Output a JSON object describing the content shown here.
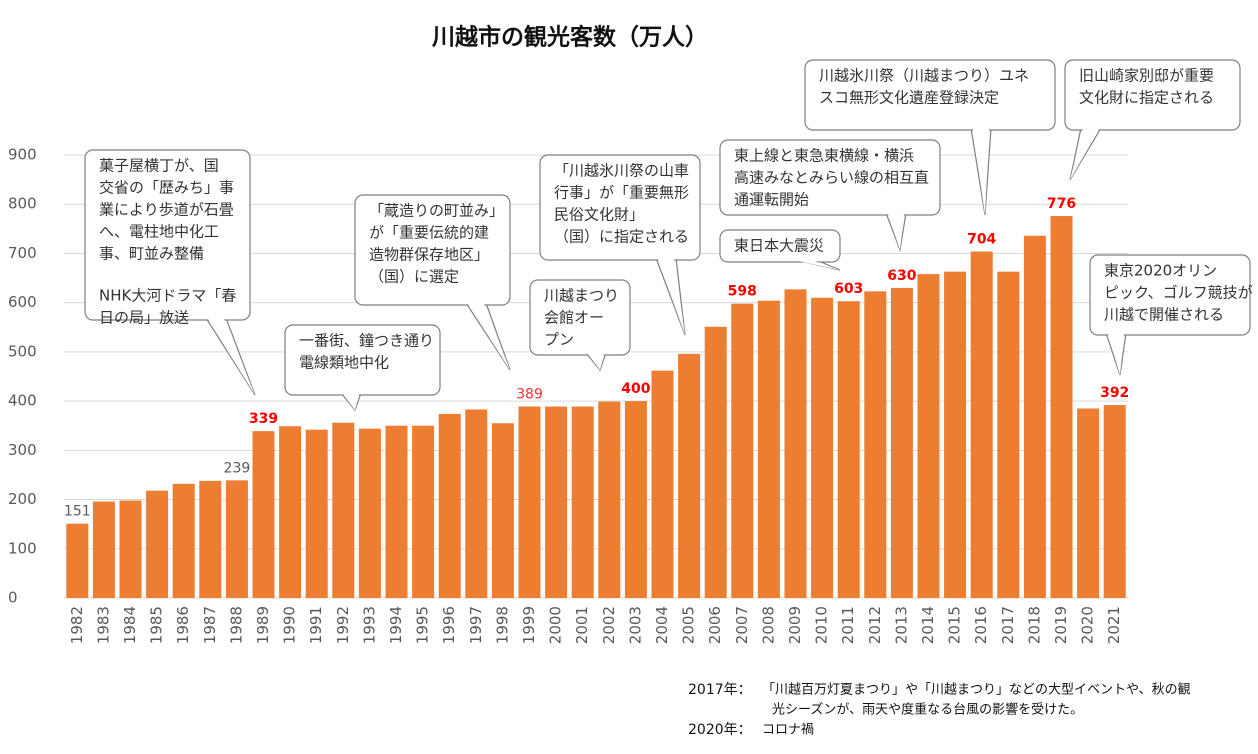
{
  "chart_data": {
    "type": "bar",
    "title": "川越市の観光客数（万人）",
    "categories": [
      "1982",
      "1983",
      "1984",
      "1985",
      "1986",
      "1987",
      "1988",
      "1989",
      "1990",
      "1991",
      "1992",
      "1993",
      "1994",
      "1995",
      "1996",
      "1997",
      "1998",
      "1999",
      "2000",
      "2001",
      "2002",
      "2003",
      "2004",
      "2005",
      "2006",
      "2007",
      "2008",
      "2009",
      "2010",
      "2011",
      "2012",
      "2013",
      "2014",
      "2015",
      "2016",
      "2017",
      "2018",
      "2019",
      "2020",
      "2021"
    ],
    "values": [
      151,
      196,
      198,
      218,
      232,
      238,
      239,
      339,
      349,
      342,
      356,
      344,
      350,
      350,
      374,
      383,
      355,
      389,
      389,
      389,
      399,
      400,
      462,
      496,
      551,
      598,
      604,
      627,
      610,
      603,
      623,
      630,
      658,
      663,
      704,
      663,
      736,
      776,
      385,
      392
    ],
    "value_labels": [
      "151",
      null,
      null,
      null,
      null,
      null,
      "239",
      "339",
      null,
      null,
      null,
      null,
      null,
      null,
      null,
      null,
      null,
      "389",
      null,
      null,
      null,
      "400",
      null,
      null,
      null,
      "598",
      null,
      null,
      null,
      "603",
      null,
      "630",
      null,
      null,
      "704",
      null,
      null,
      "776",
      null,
      "392"
    ],
    "value_label_colors": [
      "#595959",
      null,
      null,
      null,
      null,
      null,
      "#595959",
      "#ff0000",
      null,
      null,
      null,
      null,
      null,
      null,
      null,
      null,
      null,
      "#ff3030",
      null,
      null,
      null,
      "#ff0000",
      null,
      null,
      null,
      "#ff0000",
      null,
      null,
      null,
      "#ff0000",
      null,
      "#ff0000",
      null,
      null,
      "#ff0000",
      null,
      null,
      "#ff0000",
      null,
      "#ff0000"
    ],
    "color": "#ed7d31",
    "ylim": [
      0,
      900
    ],
    "yticks": [
      0,
      100,
      200,
      300,
      400,
      500,
      600,
      700,
      800,
      900
    ],
    "grid": true,
    "annotations": [
      {
        "lines": [
          "菓子屋横丁が、国",
          "交省の「歴みち」事",
          "業により歩道が石畳",
          "へ、電柱地中化工",
          "事、町並み整備",
          "NHK大河ドラマ「春",
          "日の局」放送"
        ]
      },
      {
        "lines": [
          "一番街、鐘つき通り",
          "電線類地中化"
        ]
      },
      {
        "lines": [
          "「蔵造りの町並み」",
          "が「重要伝統的建",
          "造物群保存地区」",
          "（国）に選定"
        ]
      },
      {
        "lines": [
          "川越まつり",
          "会館オー",
          "プン"
        ]
      },
      {
        "lines": [
          "「川越氷川祭の山車",
          "行事」が「重要無形",
          "民俗文化財」",
          "（国）に指定される"
        ]
      },
      {
        "lines": [
          "東日本大震災"
        ]
      },
      {
        "lines": [
          "東上線と東急東横線・横浜",
          "高速みなとみらい線の相互直",
          "通運転開始"
        ]
      },
      {
        "lines": [
          "川越氷川祭（川越まつり）ユネ",
          "スコ無形文化遺産登録決定"
        ]
      },
      {
        "lines": [
          "旧山崎家別邸が重要",
          "文化財に指定される"
        ]
      },
      {
        "lines": [
          "東京2020オリン",
          "ピック、ゴルフ競技が",
          "川越で開催される"
        ]
      }
    ],
    "notes": [
      {
        "label": "2017年：",
        "lines": [
          "「川越百万灯夏まつり」や「川越まつり」などの大型イベントや、秋の観",
          "光シーズンが、雨天や度重なる台風の影響を受けた。"
        ]
      },
      {
        "label": "2020年：",
        "lines": [
          "コロナ禍"
        ]
      }
    ]
  }
}
